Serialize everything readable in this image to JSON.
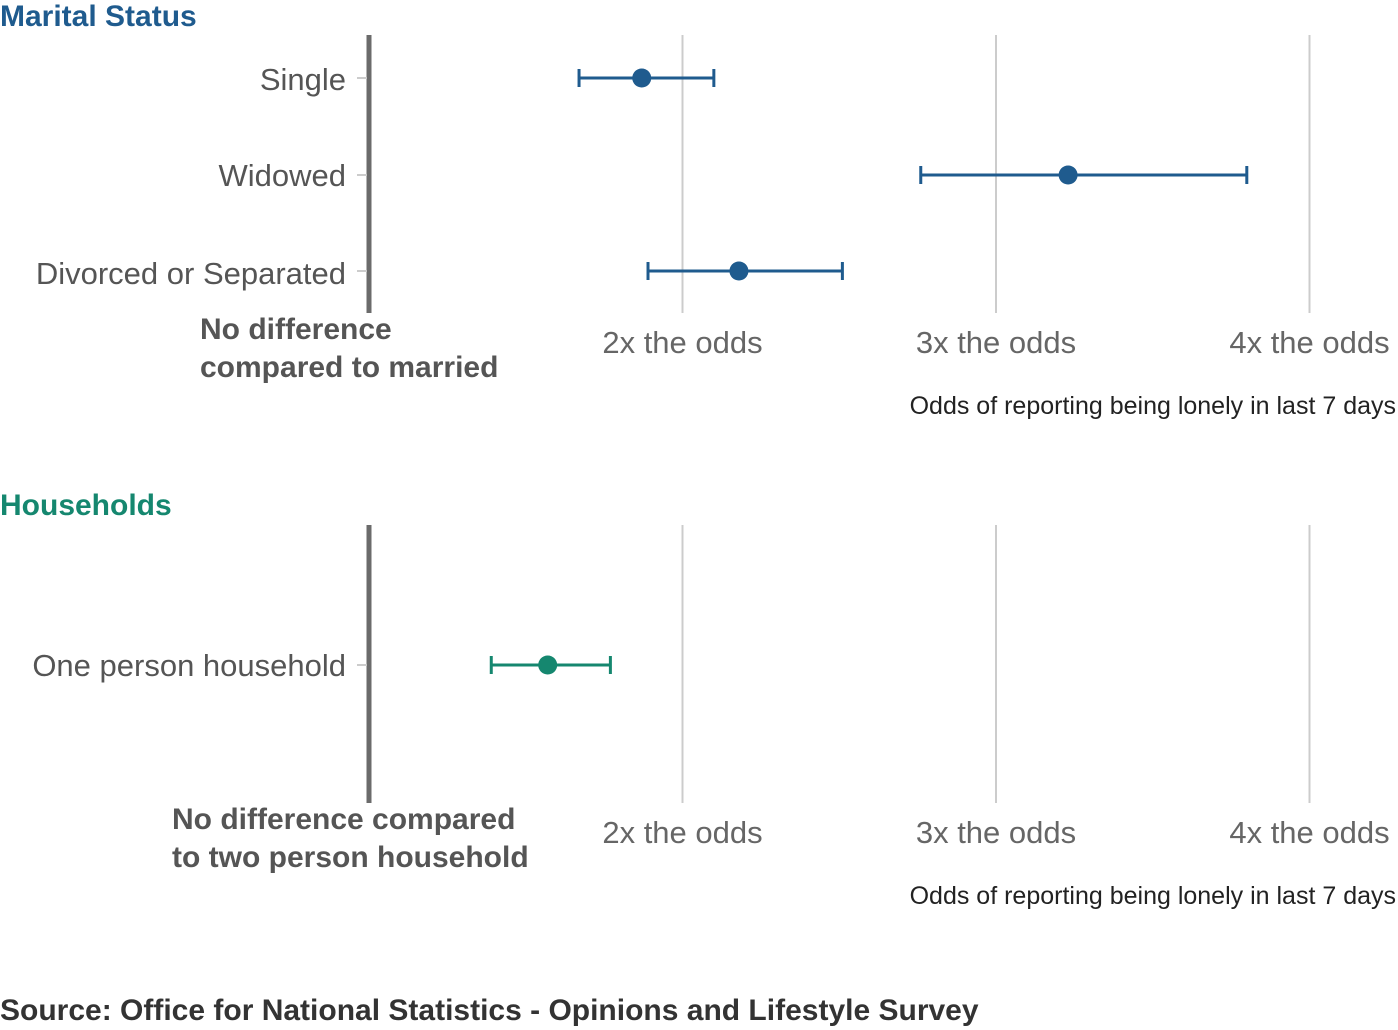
{
  "chart_data": [
    {
      "type": "scatter",
      "title": "Marital Status",
      "color": "#1f5b8e",
      "categories": [
        "Single",
        "Widowed",
        "Divorced or Separated"
      ],
      "points": [
        {
          "label": "Single",
          "value": 1.87,
          "low": 1.67,
          "high": 2.1
        },
        {
          "label": "Widowed",
          "value": 3.23,
          "low": 2.76,
          "high": 3.8
        },
        {
          "label": "Divorced or Separated",
          "value": 2.18,
          "low": 1.89,
          "high": 2.51
        }
      ],
      "xlim": [
        1,
        4.28
      ],
      "xticks": [
        2,
        3,
        4
      ],
      "tick_labels": [
        "2x the odds",
        "3x the odds",
        "4x the odds"
      ],
      "baseline_label": [
        "No difference",
        "compared to married"
      ],
      "xlabel": "Odds of reporting being lonely in last 7 days",
      "grid": true
    },
    {
      "type": "scatter",
      "title": "Households",
      "color": "#15876f",
      "categories": [
        "One person household"
      ],
      "points": [
        {
          "label": "One person household",
          "value": 1.57,
          "low": 1.39,
          "high": 1.77
        }
      ],
      "xlim": [
        1,
        4.28
      ],
      "xticks": [
        2,
        3,
        4
      ],
      "tick_labels": [
        "2x the odds",
        "3x the odds",
        "4x the odds"
      ],
      "baseline_label": [
        "No difference compared",
        "to two person household"
      ],
      "xlabel": "Odds of reporting being lonely in last 7 days",
      "grid": true
    }
  ],
  "source": "Source: Office for National Statistics - Opinions and Lifestyle Survey"
}
